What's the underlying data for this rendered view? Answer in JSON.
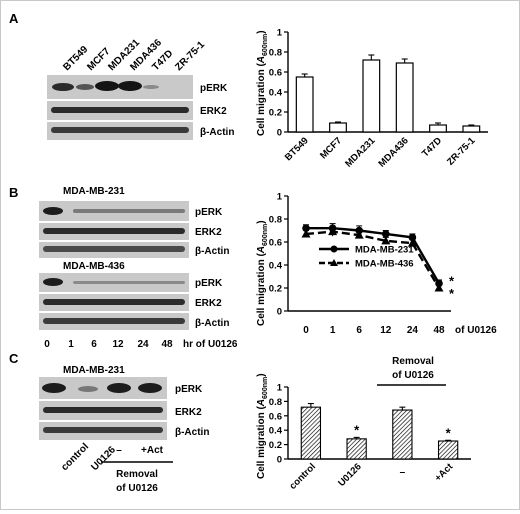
{
  "panels": {
    "a": "A",
    "b": "B",
    "c": "C"
  },
  "panel_a": {
    "lanes": [
      "BT549",
      "MCF7",
      "MDA231",
      "MDA436",
      "T47D",
      "ZR-75-1"
    ],
    "blots": [
      "pERK",
      "ERK2",
      "β-Actin"
    ]
  },
  "panel_b": {
    "blot1_title": "MDA-MB-231",
    "blot2_title": "MDA-MB-436",
    "blots1": [
      "pERK",
      "ERK2",
      "β-Actin"
    ],
    "blots2": [
      "pERK",
      "ERK2",
      "β-Actin"
    ],
    "lanes": [
      "0",
      "1",
      "6",
      "12",
      "24",
      "48"
    ],
    "lane_suffix": "hr of U0126"
  },
  "panel_c": {
    "blot_title": "MDA-MB-231",
    "blots": [
      "pERK",
      "ERK2",
      "β-Actin"
    ],
    "lanes": [
      "control",
      "U0126",
      "–",
      "+Act"
    ],
    "removal_label_line1": "Removal",
    "removal_label_line2": "of U0126",
    "chart_removal_line1": "Removal",
    "chart_removal_line2": "of U0126"
  },
  "colors": {
    "blot_bg": "#c9c9c9",
    "band": "#1c1c1c",
    "hatch": "#000000"
  },
  "chart_data": [
    {
      "type": "bar",
      "title": "",
      "xlabel": "",
      "ylabel": "Cell migration (A600nm)",
      "ylabel_main": "Cell migration (",
      "ylabel_italic": "A",
      "ylabel_sub": "600nm",
      "ylabel_close": ")",
      "categories": [
        "BT549",
        "MCF7",
        "MDA231",
        "MDA436",
        "T47D",
        "ZR-75-1"
      ],
      "values": [
        0.55,
        0.09,
        0.72,
        0.69,
        0.07,
        0.06
      ],
      "errors": [
        0.03,
        0.01,
        0.05,
        0.04,
        0.02,
        0.01
      ],
      "ylim": [
        0,
        1
      ],
      "yticks": [
        "0",
        "0.2",
        "0.4",
        "0.6",
        "0.8",
        "1"
      ],
      "fill": "white"
    },
    {
      "type": "line",
      "title": "",
      "xlabel": "of U0126",
      "ylabel": "Cell migration (A600nm)",
      "ylabel_main": "Cell migration (",
      "ylabel_italic": "A",
      "ylabel_sub": "600nm",
      "ylabel_close": ")",
      "x": [
        "0",
        "1",
        "6",
        "12",
        "24",
        "48"
      ],
      "series": [
        {
          "name": "MDA-MB-231",
          "values": [
            0.72,
            0.72,
            0.7,
            0.67,
            0.64,
            0.24
          ],
          "errors": [
            0.03,
            0.04,
            0.04,
            0.03,
            0.03,
            0.03
          ],
          "style": "solid",
          "marker": "circle"
        },
        {
          "name": "MDA-MB-436",
          "values": [
            0.67,
            0.69,
            0.66,
            0.61,
            0.59,
            0.2
          ],
          "errors": [
            0.03,
            0.04,
            0.03,
            0.03,
            0.03,
            0.03
          ],
          "style": "dashed",
          "marker": "triangle"
        }
      ],
      "ylim": [
        0,
        1
      ],
      "yticks": [
        "0",
        "0.2",
        "0.4",
        "0.6",
        "0.8",
        "1"
      ],
      "annotations": [
        "*",
        "*"
      ],
      "legend": "center"
    },
    {
      "type": "bar",
      "title": "",
      "xlabel": "",
      "ylabel": "Cell migration (A600nm)",
      "ylabel_main": "Cell migration (",
      "ylabel_italic": "A",
      "ylabel_sub": "600nm",
      "ylabel_close": ")",
      "categories": [
        "control",
        "U0126",
        "–",
        "+Act"
      ],
      "values": [
        0.72,
        0.28,
        0.68,
        0.25
      ],
      "errors": [
        0.05,
        0.02,
        0.04,
        0.01
      ],
      "significant": [
        false,
        true,
        false,
        true
      ],
      "significance_mark": "*",
      "ylim": [
        0,
        1
      ],
      "yticks": [
        "0",
        "0.2",
        "0.4",
        "0.6",
        "0.8",
        "1"
      ],
      "fill": "hatched"
    }
  ]
}
